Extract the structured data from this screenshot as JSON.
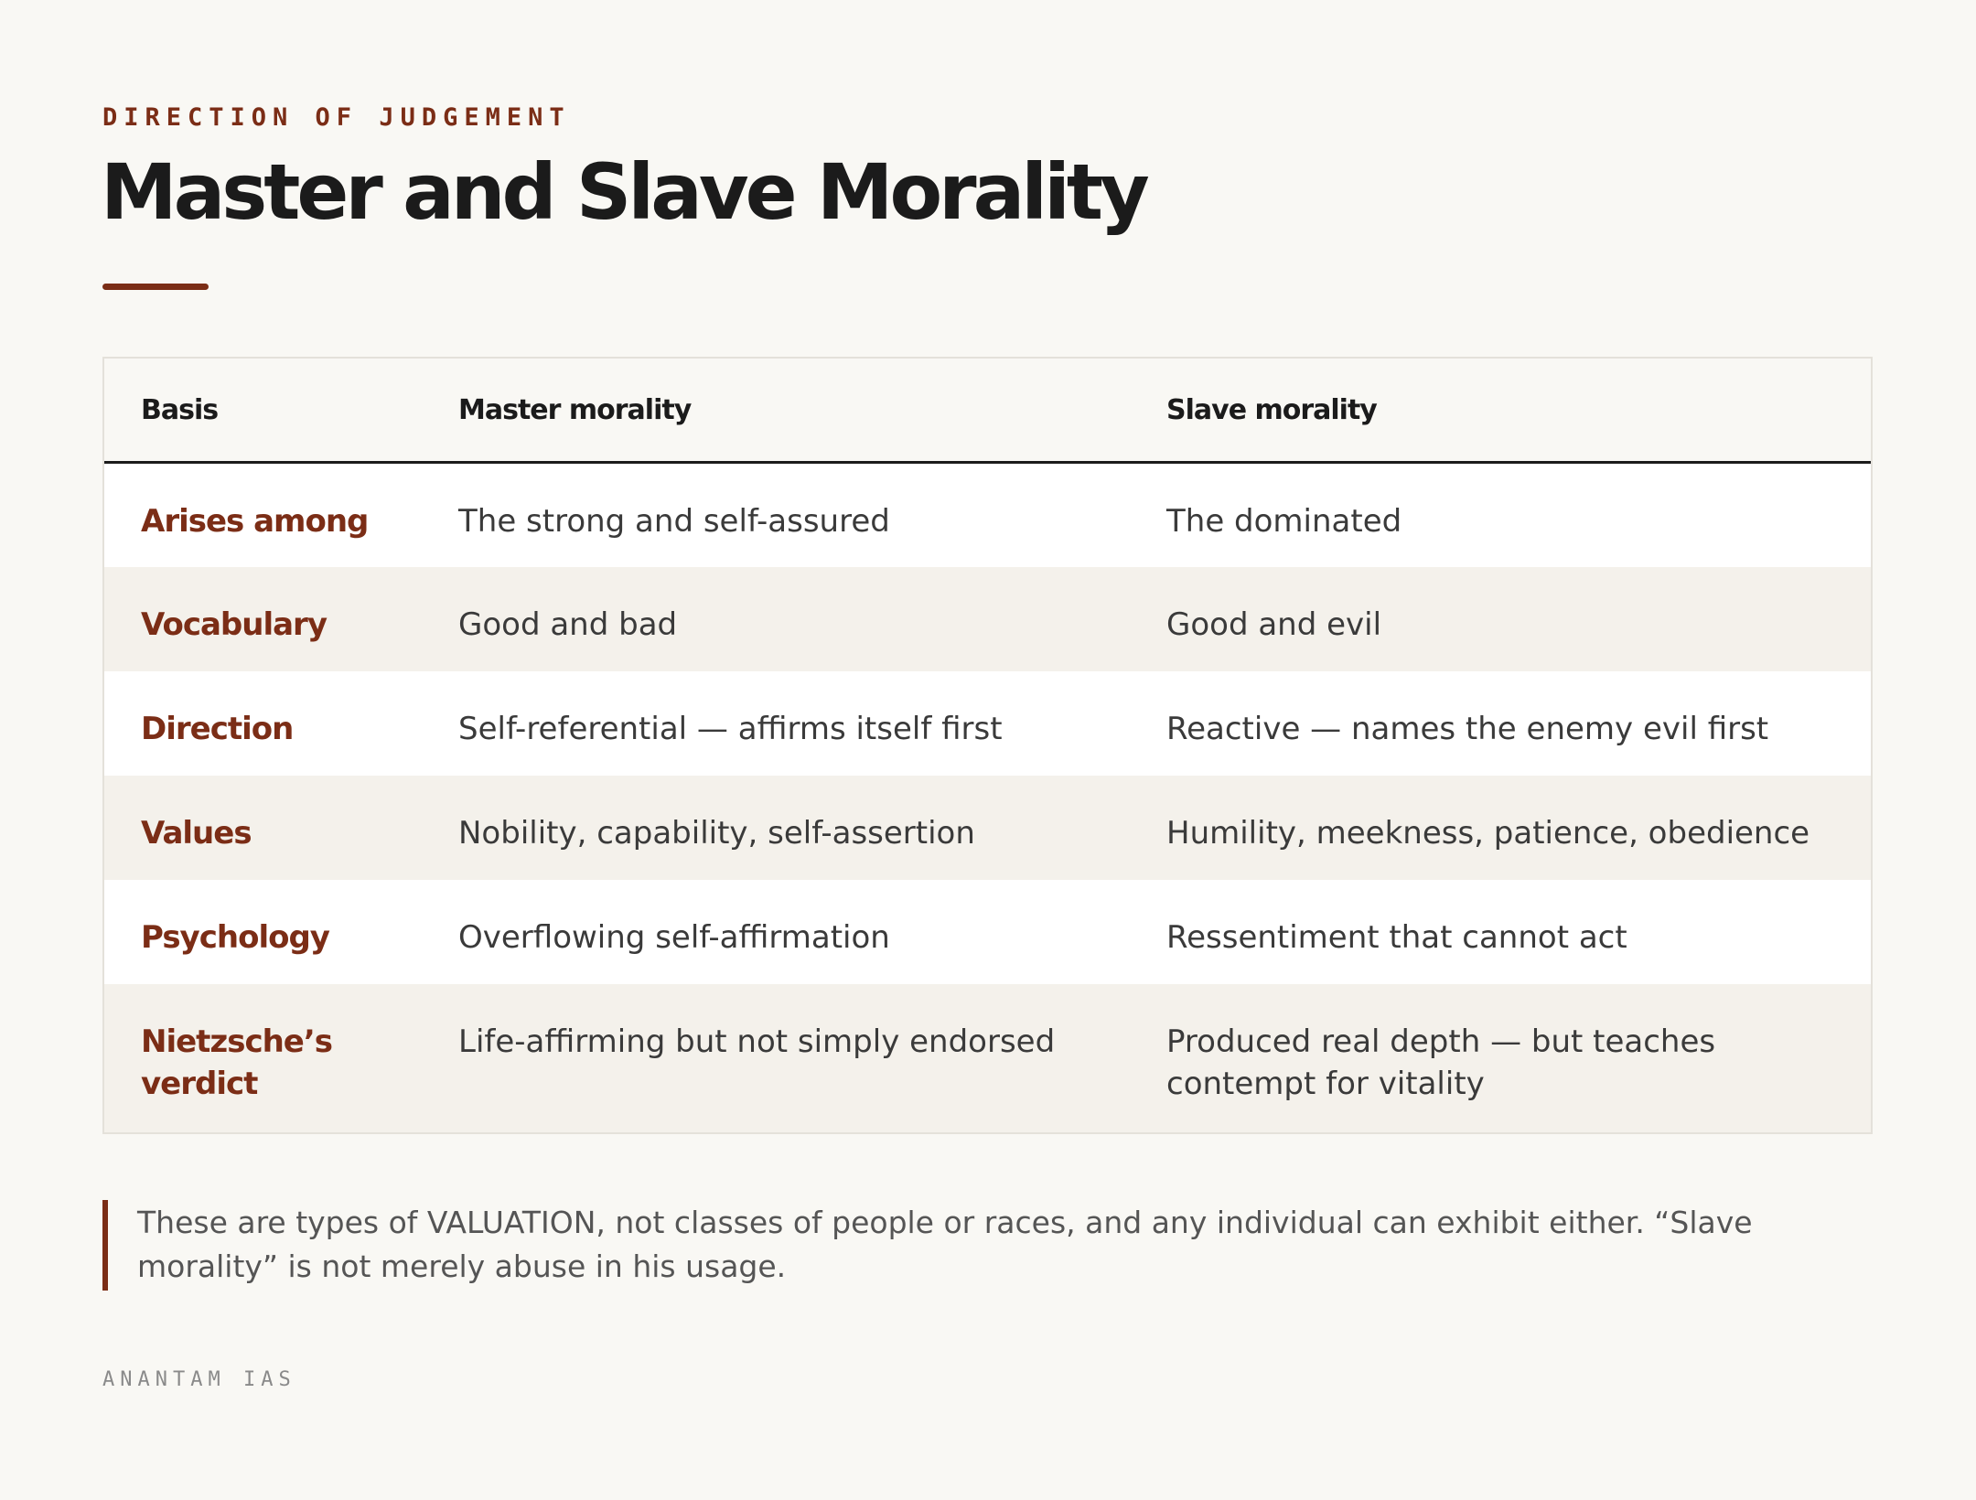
{
  "header": {
    "eyebrow": "DIRECTION OF JUDGEMENT",
    "title": "Master and Slave Morality"
  },
  "table": {
    "headers": [
      "Basis",
      "Master morality",
      "Slave morality"
    ],
    "rows": [
      {
        "basis": "Arises among",
        "master": "The strong and self-assured",
        "slave": "The dominated"
      },
      {
        "basis": "Vocabulary",
        "master": "Good and bad",
        "slave": "Good and evil"
      },
      {
        "basis": "Direction",
        "master": "Self-referential — affirms itself first",
        "slave": "Reactive — names the enemy evil first"
      },
      {
        "basis": "Values",
        "master": "Nobility, capability, self-assertion",
        "slave": "Humility, meekness, patience, obedience"
      },
      {
        "basis": "Psychology",
        "master": "Overflowing self-affirmation",
        "slave": "Ressentiment that cannot act"
      },
      {
        "basis": "Nietzsche’s verdict",
        "master": "Life-affirming but not simply endorsed",
        "slave": "Produced real depth — but teaches contempt for vitality"
      }
    ]
  },
  "note": "These are types of VALUATION, not classes of people or races, and any individual can exhibit either. “Slave morality” is not merely abuse in his usage.",
  "footer": "ANANTAM IAS",
  "colors": {
    "accent": "#7b2d16",
    "background": "#f9f8f4",
    "text": "#1b1b1b",
    "stripe": "#f4f1eb"
  }
}
